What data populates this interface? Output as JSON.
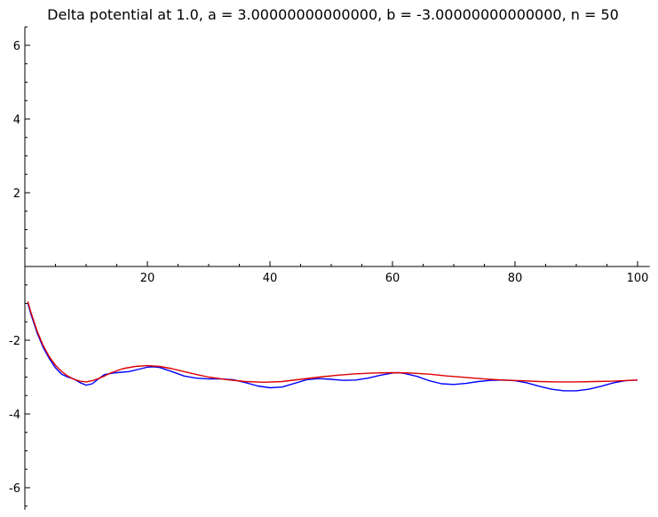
{
  "chart_data": {
    "type": "line",
    "title": "Delta potential at 1.0, a = 3.00000000000000, b = -3.00000000000000, n = 50",
    "xlabel": "",
    "ylabel": "",
    "xlim": [
      0,
      102
    ],
    "ylim": [
      -6.6,
      6.5
    ],
    "x_ticks": [
      20,
      40,
      60,
      80,
      100
    ],
    "x_tick_labels": [
      "20",
      "40",
      "60",
      "80",
      "100"
    ],
    "y_ticks": [
      -6,
      -4,
      -2,
      2,
      4,
      6
    ],
    "y_tick_labels": [
      "-6",
      "-4",
      "-2",
      "2",
      "4",
      "6"
    ],
    "grid": false,
    "series": [
      {
        "color": "#0000ff",
        "x": [
          0.5,
          1,
          2,
          3,
          4,
          5,
          6,
          7,
          8,
          9,
          10,
          11,
          12,
          13,
          14,
          15,
          17,
          19,
          20,
          21,
          22,
          24,
          26,
          28,
          30,
          32,
          34,
          36,
          38,
          40,
          42,
          44,
          46,
          48,
          50,
          52,
          54,
          56,
          58,
          60,
          61,
          62,
          64,
          66,
          68,
          70,
          72,
          74,
          76,
          78,
          80,
          82,
          84,
          86,
          88,
          90,
          92,
          94,
          96,
          98,
          100
        ],
        "y": [
          -1.0,
          -1.3,
          -1.8,
          -2.2,
          -2.5,
          -2.75,
          -2.92,
          -3.0,
          -3.05,
          -3.15,
          -3.22,
          -3.18,
          -3.05,
          -2.93,
          -2.9,
          -2.88,
          -2.85,
          -2.77,
          -2.73,
          -2.72,
          -2.74,
          -2.85,
          -2.97,
          -3.03,
          -3.05,
          -3.05,
          -3.07,
          -3.15,
          -3.24,
          -3.29,
          -3.27,
          -3.17,
          -3.07,
          -3.04,
          -3.06,
          -3.09,
          -3.08,
          -3.03,
          -2.95,
          -2.89,
          -2.88,
          -2.9,
          -2.98,
          -3.1,
          -3.18,
          -3.2,
          -3.17,
          -3.12,
          -3.09,
          -3.08,
          -3.1,
          -3.16,
          -3.25,
          -3.33,
          -3.37,
          -3.37,
          -3.33,
          -3.25,
          -3.16,
          -3.1,
          -3.08
        ]
      },
      {
        "color": "#dd0000",
        "x": [
          0.5,
          1,
          2,
          3,
          4,
          5,
          6,
          7,
          8,
          9,
          10,
          11,
          12,
          13,
          14,
          15,
          16,
          18,
          20,
          22,
          24,
          26,
          28,
          30,
          33,
          36,
          39,
          42,
          45,
          48,
          51,
          54,
          57,
          60,
          63,
          66,
          69,
          72,
          75,
          78,
          81,
          84,
          87,
          90,
          93,
          96,
          100
        ],
        "y": [
          -0.95,
          -1.25,
          -1.75,
          -2.15,
          -2.45,
          -2.68,
          -2.85,
          -2.97,
          -3.06,
          -3.11,
          -3.13,
          -3.1,
          -3.04,
          -2.97,
          -2.89,
          -2.83,
          -2.77,
          -2.71,
          -2.69,
          -2.71,
          -2.77,
          -2.85,
          -2.93,
          -3.0,
          -3.07,
          -3.12,
          -3.14,
          -3.12,
          -3.06,
          -3.0,
          -2.95,
          -2.91,
          -2.89,
          -2.88,
          -2.89,
          -2.92,
          -2.97,
          -3.01,
          -3.05,
          -3.08,
          -3.1,
          -3.12,
          -3.13,
          -3.13,
          -3.12,
          -3.11,
          -3.08
        ]
      }
    ]
  }
}
